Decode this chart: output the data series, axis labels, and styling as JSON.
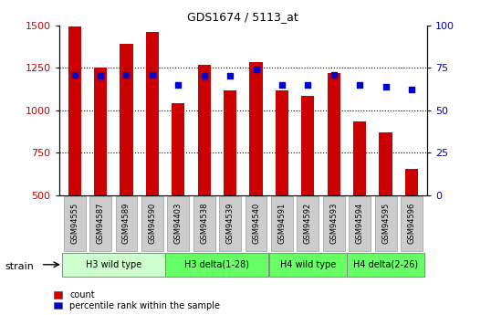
{
  "title": "GDS1674 / 5113_at",
  "samples": [
    "GSM94555",
    "GSM94587",
    "GSM94589",
    "GSM94590",
    "GSM94403",
    "GSM94538",
    "GSM94539",
    "GSM94540",
    "GSM94591",
    "GSM94592",
    "GSM94593",
    "GSM94594",
    "GSM94595",
    "GSM94596"
  ],
  "counts": [
    1490,
    1252,
    1390,
    1460,
    1042,
    1265,
    1115,
    1285,
    1115,
    1085,
    1218,
    935,
    870,
    655
  ],
  "percentiles": [
    71,
    70,
    71,
    71,
    65,
    70,
    70,
    74,
    65,
    65,
    71,
    65,
    64,
    62
  ],
  "ylim_left": [
    500,
    1500
  ],
  "ylim_right": [
    0,
    100
  ],
  "yticks_left": [
    500,
    750,
    1000,
    1250,
    1500
  ],
  "yticks_right": [
    0,
    25,
    50,
    75,
    100
  ],
  "bar_color": "#cc0000",
  "dot_color": "#0000cc",
  "bar_width": 0.5,
  "groups": [
    {
      "label": "H3 wild type",
      "start": 0,
      "end": 4,
      "color": "#ccffcc"
    },
    {
      "label": "H3 delta(1-28)",
      "start": 4,
      "end": 8,
      "color": "#66ff66"
    },
    {
      "label": "H4 wild type",
      "start": 8,
      "end": 11,
      "color": "#66ff66"
    },
    {
      "label": "H4 delta(2-26)",
      "start": 11,
      "end": 14,
      "color": "#66ff66"
    }
  ],
  "strain_label": "strain",
  "legend_count": "count",
  "legend_percentile": "percentile rank within the sample",
  "tick_label_color_left": "#cc0000",
  "tick_label_color_right": "#0000cc",
  "tick_bg_color": "#cccccc",
  "tick_border_color": "#999999",
  "fig_width": 5.38,
  "fig_height": 3.45,
  "dpi": 100
}
